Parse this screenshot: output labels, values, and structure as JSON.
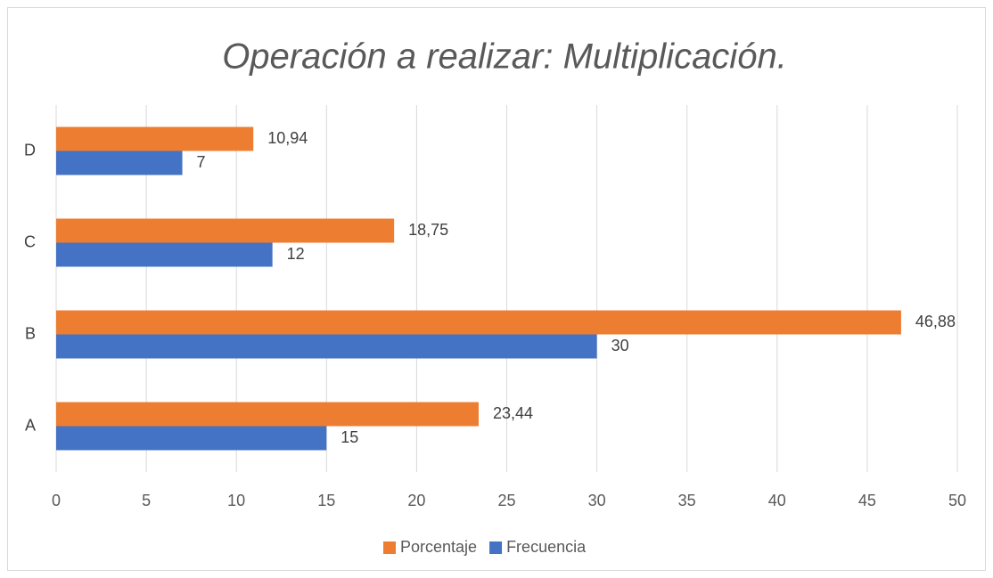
{
  "chart_data": {
    "type": "hbar",
    "title": "Operación a realizar: Multiplicación.",
    "categories": [
      "A",
      "B",
      "C",
      "D"
    ],
    "series": [
      {
        "name": "Porcentaje",
        "color": "#ed7d31",
        "values": [
          23.44,
          46.88,
          18.75,
          10.94
        ],
        "value_labels": [
          "23,44",
          "46,88",
          "18,75",
          "10,94"
        ]
      },
      {
        "name": "Frecuencia",
        "color": "#4472c4",
        "values": [
          15,
          30,
          12,
          7
        ]
      }
    ],
    "xlim": [
      0,
      50
    ],
    "xticks": [
      0,
      5,
      10,
      15,
      20,
      25,
      30,
      35,
      40,
      45,
      50
    ],
    "grid": true,
    "legend": "bottom"
  }
}
